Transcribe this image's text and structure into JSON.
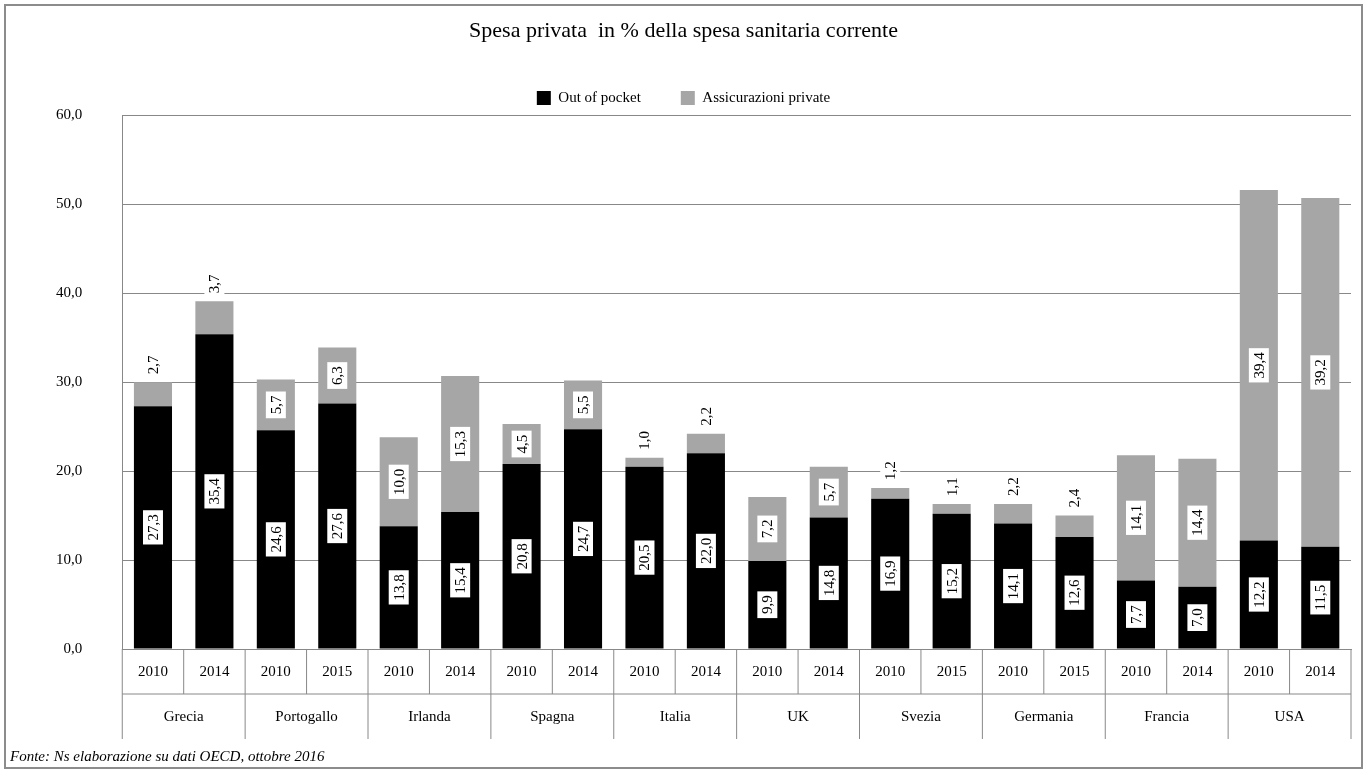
{
  "chart_data": {
    "type": "bar",
    "stacked": true,
    "title": "Spesa privata  in % della spesa sanitaria corrente",
    "categories": [
      "2010",
      "2014",
      "2010",
      "2015",
      "2010",
      "2014",
      "2010",
      "2014",
      "2010",
      "2014",
      "2010",
      "2014",
      "2010",
      "2015",
      "2010",
      "2015",
      "2010",
      "2014",
      "2010",
      "2014"
    ],
    "series": [
      {
        "name": "Out of pocket",
        "color": "#000000",
        "values": [
          27.3,
          35.4,
          24.6,
          27.6,
          13.8,
          15.4,
          20.8,
          24.7,
          20.5,
          22.0,
          9.9,
          14.8,
          16.9,
          15.2,
          14.1,
          12.6,
          7.7,
          7.0,
          12.2,
          11.5
        ],
        "value_labels": [
          "27,3",
          "35,4",
          "24,6",
          "27,6",
          "13,8",
          "15,4",
          "20,8",
          "24,7",
          "20,5",
          "22,0",
          "9,9",
          "14,8",
          "16,9",
          "15,2",
          "14,1",
          "12,6",
          "7,7",
          "7,0",
          "12,2",
          "11,5"
        ]
      },
      {
        "name": "Assicurazioni private",
        "color": "#a6a6a6",
        "values": [
          2.7,
          3.7,
          5.7,
          6.3,
          10.0,
          15.3,
          4.5,
          5.5,
          1.0,
          2.2,
          7.2,
          5.7,
          1.2,
          1.1,
          2.2,
          2.4,
          14.1,
          14.4,
          39.4,
          39.2
        ],
        "value_labels": [
          "2,7",
          "3,7",
          "5,7",
          "6,3",
          "10,0",
          "15,3",
          "4,5",
          "5,5",
          "1,0",
          "2,2",
          "7,2",
          "5,7",
          "1,2",
          "1,1",
          "2,2",
          "2,4",
          "14,1",
          "14,4",
          "39,4",
          "39,2"
        ]
      }
    ],
    "ylim": [
      0,
      60
    ],
    "yticks": [
      {
        "value": 0,
        "label": "0,0"
      },
      {
        "value": 10,
        "label": "10,0"
      },
      {
        "value": 20,
        "label": "20,0"
      },
      {
        "value": 30,
        "label": "30,0"
      },
      {
        "value": 40,
        "label": "40,0"
      },
      {
        "value": 50,
        "label": "50,0"
      },
      {
        "value": 60,
        "label": "60,0"
      }
    ],
    "grid": "y",
    "legend": "top",
    "annotations": [
      "Grecia",
      "Portogallo",
      "Irlanda",
      "Spagna",
      "Italia",
      "UK",
      "Svezia",
      "Germania",
      "Francia",
      "USA",
      "Fonte: Ns elaborazione su dati OECD, ottobre 2016"
    ]
  }
}
